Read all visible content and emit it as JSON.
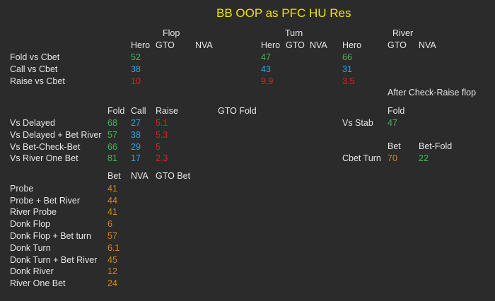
{
  "title": "BB OOP as PFC  HU Res",
  "colors": {
    "background": "#2b2b2b",
    "title": "#f2e600",
    "green": "#3fb950",
    "blue": "#2aa3e8",
    "red": "#e0201b",
    "orange": "#d6861f"
  },
  "streets": {
    "flop": "Flop",
    "turn": "Turn",
    "river": "River",
    "hero": "Hero",
    "gto": "GTO",
    "nva": "NVA"
  },
  "cbet": {
    "rows": [
      {
        "label": "Fold vs Cbet",
        "flop": "52",
        "turn": "47",
        "river": "66"
      },
      {
        "label": "Call vs Cbet",
        "flop": "38",
        "turn": "43",
        "river": "31"
      },
      {
        "label": "Raise vs Cbet",
        "flop": "10",
        "turn": "9.9",
        "river": "3.5"
      }
    ]
  },
  "after_cr": {
    "title": "After Check-Raise flop",
    "fold_header": "Fold",
    "stab_label": "Vs Stab",
    "stab_value": "47",
    "bet_header": "Bet",
    "betfold_header": "Bet-Fold",
    "cbet_turn_label": "Cbet Turn",
    "cbet_turn_bet": "70",
    "cbet_turn_betfold": "22"
  },
  "delayed": {
    "headers": {
      "fold": "Fold",
      "call": "Call",
      "raise": "Raise",
      "gto_fold": "GTO Fold"
    },
    "rows": [
      {
        "label": "Vs Delayed",
        "fold": "68",
        "call": "27",
        "raise": "5.1"
      },
      {
        "label": "Vs Delayed + Bet River",
        "fold": "57",
        "call": "38",
        "raise": "5.3"
      },
      {
        "label": "Vs Bet-Check-Bet",
        "fold": "66",
        "call": "29",
        "raise": "5"
      },
      {
        "label": "Vs River One Bet",
        "fold": "81",
        "call": "17",
        "raise": "2.3"
      }
    ]
  },
  "probe": {
    "headers": {
      "bet": "Bet",
      "nva": "NVA",
      "gto_bet": "GTO Bet"
    },
    "rows": [
      {
        "label": "Probe",
        "bet": "41"
      },
      {
        "label": "Probe + Bet River",
        "bet": "44"
      },
      {
        "label": "River Probe",
        "bet": "41"
      },
      {
        "label": "Donk Flop",
        "bet": "6"
      },
      {
        "label": "Donk Flop + Bet turn",
        "bet": "57"
      },
      {
        "label": "Donk Turn",
        "bet": "6.1"
      },
      {
        "label": "Donk Turn + Bet River",
        "bet": "45"
      },
      {
        "label": "Donk River",
        "bet": "12"
      },
      {
        "label": "River One Bet",
        "bet": "24"
      }
    ]
  }
}
